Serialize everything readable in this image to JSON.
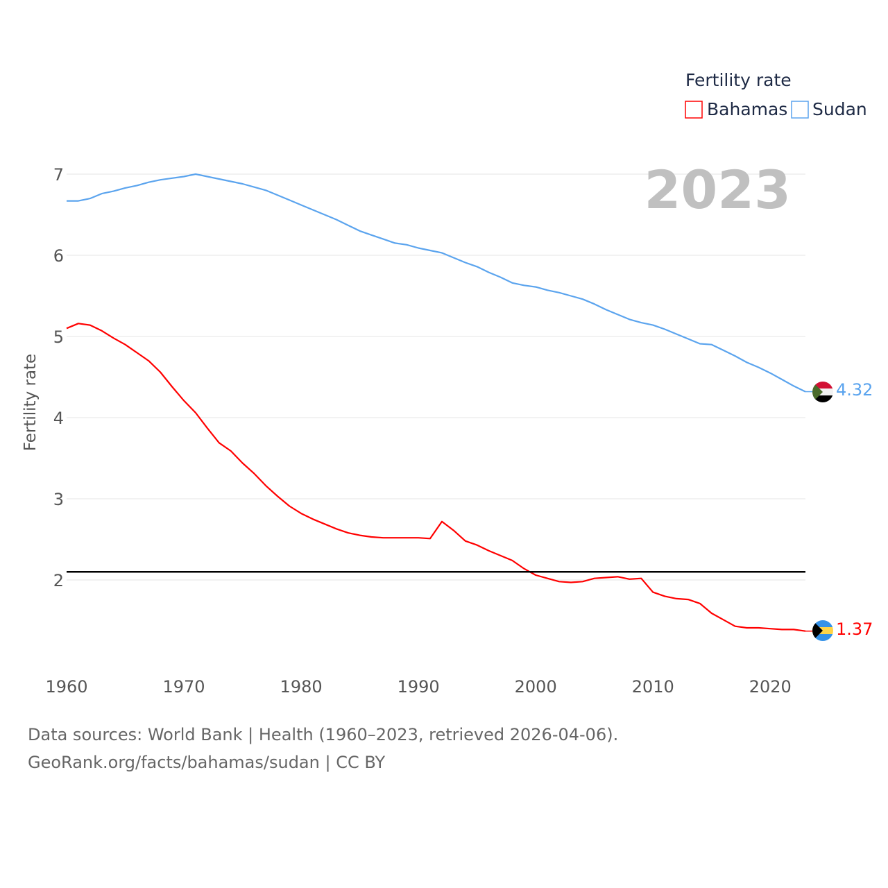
{
  "chart_data": {
    "type": "line",
    "title": "",
    "legend_title": "Fertility rate",
    "legend_position": "top-right",
    "current_year_label": "2023",
    "xlabel": "",
    "ylabel": "Fertility rate",
    "xlim": [
      1960,
      2023
    ],
    "ylim": [
      1.0,
      7.0
    ],
    "x_ticks": [
      1960,
      1970,
      1980,
      1990,
      2000,
      2010,
      2020
    ],
    "y_ticks": [
      2,
      3,
      4,
      5,
      6,
      7
    ],
    "grid": true,
    "reference_line": {
      "value": 2.1,
      "color": "#000000"
    },
    "x": [
      1960,
      1961,
      1962,
      1963,
      1964,
      1965,
      1966,
      1967,
      1968,
      1969,
      1970,
      1971,
      1972,
      1973,
      1974,
      1975,
      1976,
      1977,
      1978,
      1979,
      1980,
      1981,
      1982,
      1983,
      1984,
      1985,
      1986,
      1987,
      1988,
      1989,
      1990,
      1991,
      1992,
      1993,
      1994,
      1995,
      1996,
      1997,
      1998,
      1999,
      2000,
      2001,
      2002,
      2003,
      2004,
      2005,
      2006,
      2007,
      2008,
      2009,
      2010,
      2011,
      2012,
      2013,
      2014,
      2015,
      2016,
      2017,
      2018,
      2019,
      2020,
      2021,
      2022,
      2023
    ],
    "series": [
      {
        "name": "Bahamas",
        "color": "#ff0000",
        "end_label": "1.37",
        "values": [
          5.1,
          5.16,
          5.14,
          5.07,
          4.98,
          4.9,
          4.8,
          4.7,
          4.56,
          4.38,
          4.21,
          4.06,
          3.87,
          3.69,
          3.59,
          3.44,
          3.31,
          3.16,
          3.03,
          2.91,
          2.82,
          2.75,
          2.69,
          2.63,
          2.58,
          2.55,
          2.53,
          2.52,
          2.52,
          2.52,
          2.52,
          2.51,
          2.72,
          2.61,
          2.48,
          2.43,
          2.36,
          2.3,
          2.24,
          2.14,
          2.06,
          2.02,
          1.98,
          1.97,
          1.98,
          2.02,
          2.03,
          2.04,
          2.01,
          2.02,
          1.85,
          1.8,
          1.77,
          1.76,
          1.71,
          1.59,
          1.51,
          1.43,
          1.41,
          1.41,
          1.4,
          1.39,
          1.39,
          1.37
        ]
      },
      {
        "name": "Sudan",
        "color": "#5ba4ee",
        "end_label": "4.32",
        "values": [
          6.67,
          6.67,
          6.7,
          6.76,
          6.79,
          6.83,
          6.86,
          6.9,
          6.93,
          6.95,
          6.97,
          7.0,
          6.97,
          6.94,
          6.91,
          6.88,
          6.84,
          6.8,
          6.74,
          6.68,
          6.62,
          6.56,
          6.5,
          6.44,
          6.37,
          6.3,
          6.25,
          6.2,
          6.15,
          6.13,
          6.09,
          6.06,
          6.03,
          5.97,
          5.91,
          5.86,
          5.79,
          5.73,
          5.66,
          5.63,
          5.61,
          5.57,
          5.54,
          5.5,
          5.46,
          5.4,
          5.33,
          5.27,
          5.21,
          5.17,
          5.14,
          5.09,
          5.03,
          4.97,
          4.91,
          4.9,
          4.83,
          4.76,
          4.68,
          4.62,
          4.55,
          4.47,
          4.39,
          4.32
        ]
      }
    ]
  },
  "footer": {
    "line1": "Data sources: World Bank | Health (1960–2023, retrieved 2026-04-06).",
    "line2": "GeoRank.org/facts/bahamas/sudan | CC BY"
  }
}
